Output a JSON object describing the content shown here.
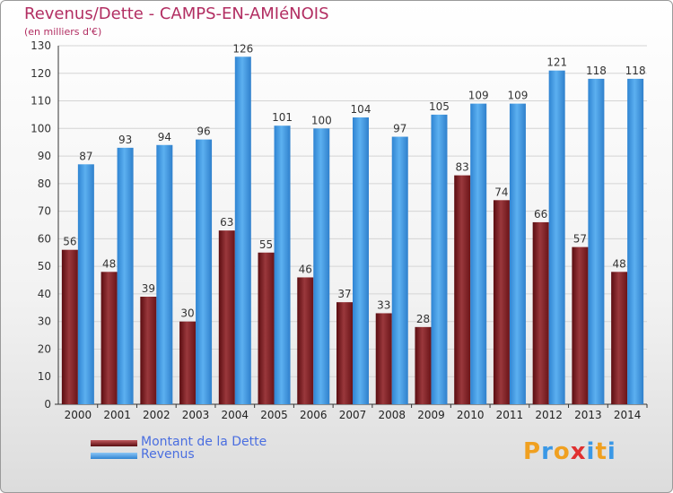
{
  "header": {
    "title": "Revenus/Dette - CAMPS-EN-AMIéNOIS",
    "subtitle": "(en milliers d'€)"
  },
  "legend": {
    "items": [
      {
        "label": "Montant de la Dette",
        "color": "#7a1f24"
      },
      {
        "label": "Revenus",
        "color": "#3a98e6"
      }
    ]
  },
  "logo": {
    "text": "Proxiti",
    "letter_colors": [
      "#f0a020",
      "#3a98e6",
      "#f0a020",
      "#e03030",
      "#3a98e6",
      "#f0a020",
      "#3a98e6"
    ]
  },
  "chart_data": {
    "type": "bar",
    "categories": [
      "2000",
      "2001",
      "2002",
      "2003",
      "2004",
      "2005",
      "2006",
      "2007",
      "2008",
      "2009",
      "2010",
      "2011",
      "2012",
      "2013",
      "2014"
    ],
    "series": [
      {
        "name": "Montant de la Dette",
        "color": "#7a1f24",
        "values": [
          56,
          48,
          39,
          30,
          63,
          55,
          46,
          37,
          33,
          28,
          83,
          74,
          66,
          57,
          48
        ]
      },
      {
        "name": "Revenus",
        "color": "#3a98e6",
        "values": [
          87,
          93,
          94,
          96,
          126,
          101,
          100,
          104,
          97,
          105,
          109,
          109,
          121,
          118,
          118
        ]
      }
    ],
    "title": "Revenus/Dette - CAMPS-EN-AMIéNOIS",
    "subtitle": "(en milliers d'€)",
    "ylim": [
      0,
      130
    ],
    "yticks": [
      0,
      10,
      20,
      30,
      40,
      50,
      60,
      70,
      80,
      90,
      100,
      110,
      120,
      130
    ],
    "grid": true,
    "legend_position": "bottom-left"
  }
}
